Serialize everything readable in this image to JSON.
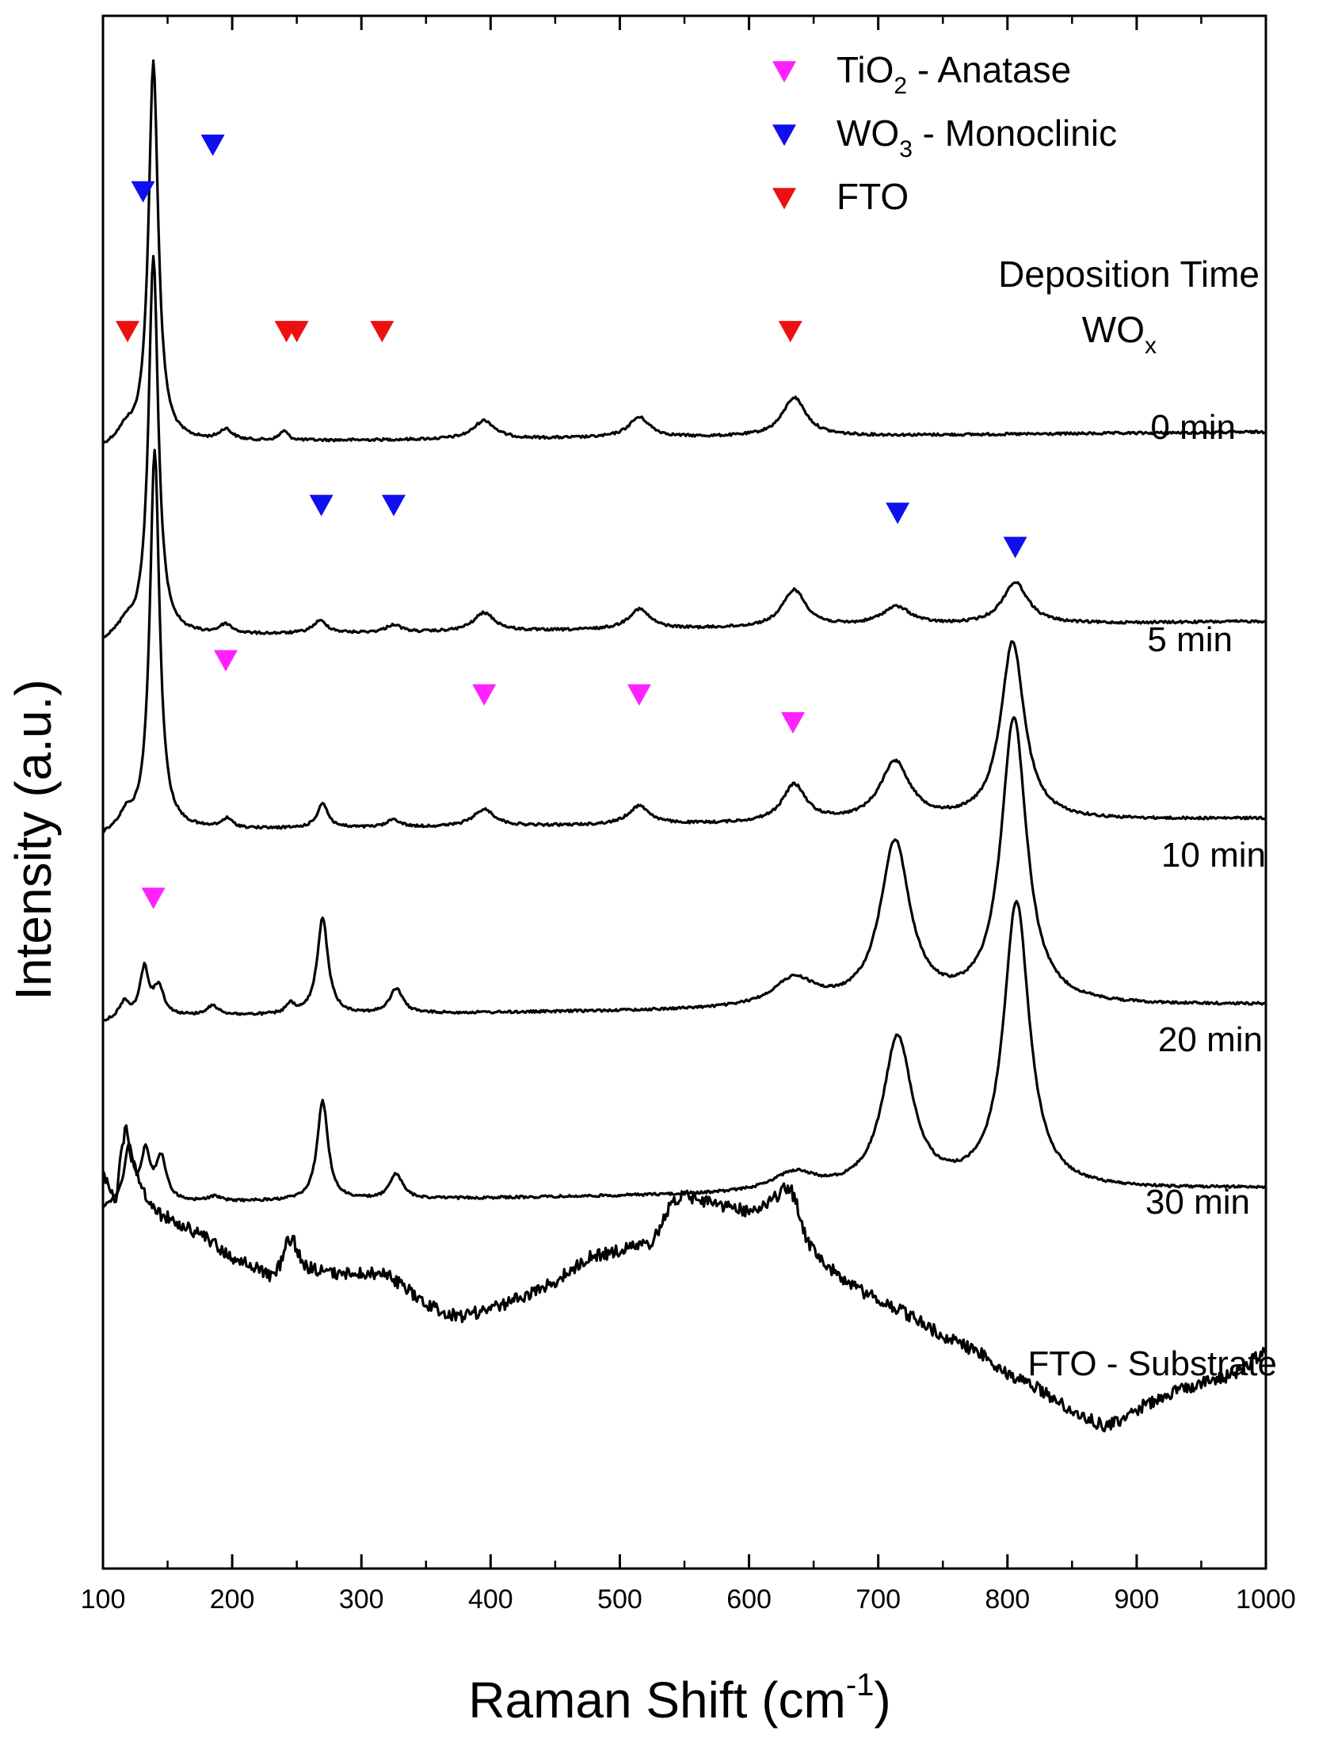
{
  "chart_data": {
    "type": "line",
    "title": "",
    "xlabel_main": "Raman Shift (cm",
    "xlabel_sup": "-1",
    "xlabel_close": ")",
    "ylabel": "Intensity (a.u.)",
    "xlim": [
      100,
      1000
    ],
    "xticks": [
      100,
      200,
      300,
      400,
      500,
      600,
      700,
      800,
      900,
      1000
    ],
    "grid": false,
    "legend_position": "top-right",
    "legend": [
      {
        "main": "TiO",
        "sub": "2",
        "rest": " - Anatase",
        "color": "#ff22ff"
      },
      {
        "main": "WO",
        "sub": "3",
        "rest": " - Monoclinic",
        "color": "#1010ee"
      },
      {
        "main": "FTO",
        "sub": "",
        "rest": "",
        "color": "#ee1010"
      }
    ],
    "group_title": {
      "line1": "Deposition Time",
      "line2_main": "WO",
      "line2_sub": "x"
    },
    "series": [
      {
        "name": "0 min",
        "baseline": 0.275,
        "tail": 0.268,
        "peaks": [
          [
            118,
            5,
            0.006
          ],
          [
            139,
            4.5,
            0.245
          ],
          [
            195,
            6,
            0.007
          ],
          [
            240,
            4,
            0.006
          ],
          [
            395,
            10,
            0.012
          ],
          [
            515,
            10,
            0.013
          ],
          [
            635,
            11,
            0.025
          ]
        ],
        "markers": [
          {
            "x": 139,
            "y": 0.568,
            "phase": "TiO2"
          },
          {
            "x": 195,
            "y": 0.415,
            "phase": "TiO2"
          },
          {
            "x": 395,
            "y": 0.437,
            "phase": "TiO2"
          },
          {
            "x": 515,
            "y": 0.437,
            "phase": "TiO2"
          },
          {
            "x": 634,
            "y": 0.455,
            "phase": "TiO2"
          }
        ]
      },
      {
        "name": "5 min",
        "baseline": 0.4,
        "tail": 0.39,
        "peaks": [
          [
            118,
            5,
            0.006
          ],
          [
            139,
            4.5,
            0.245
          ],
          [
            195,
            6,
            0.006
          ],
          [
            268,
            7,
            0.008
          ],
          [
            325,
            7,
            0.005
          ],
          [
            395,
            10,
            0.012
          ],
          [
            515,
            10,
            0.013
          ],
          [
            635,
            11,
            0.024
          ],
          [
            714,
            14,
            0.012
          ],
          [
            806,
            12,
            0.027
          ]
        ],
        "markers": [
          {
            "x": 269,
            "y": 0.315,
            "phase": "WO3"
          },
          {
            "x": 325,
            "y": 0.315,
            "phase": "WO3"
          },
          {
            "x": 715,
            "y": 0.32,
            "phase": "WO3"
          },
          {
            "x": 806,
            "y": 0.342,
            "phase": "WO3"
          }
        ]
      },
      {
        "name": "10 min",
        "baseline": 0.525,
        "tail": 0.517,
        "peaks": [
          [
            118,
            5,
            0.008
          ],
          [
            140,
            4.5,
            0.245
          ],
          [
            196,
            5,
            0.006
          ],
          [
            270,
            5,
            0.016
          ],
          [
            325,
            6,
            0.005
          ],
          [
            395,
            10,
            0.011
          ],
          [
            515,
            10,
            0.012
          ],
          [
            635,
            11,
            0.024
          ],
          [
            713,
            14,
            0.038
          ],
          [
            804,
            11,
            0.115
          ]
        ],
        "markers": [
          {
            "x": 119,
            "y": 0.203,
            "phase": "FTO"
          },
          {
            "x": 242,
            "y": 0.203,
            "phase": "FTO"
          },
          {
            "x": 250,
            "y": 0.203,
            "phase": "FTO"
          },
          {
            "x": 316,
            "y": 0.203,
            "phase": "FTO"
          },
          {
            "x": 632,
            "y": 0.203,
            "phase": "FTO"
          }
        ]
      },
      {
        "name": "20 min",
        "baseline": 0.645,
        "tail": 0.637,
        "peaks": [
          [
            117,
            4,
            0.009
          ],
          [
            132,
            4,
            0.03
          ],
          [
            143,
            5,
            0.018
          ],
          [
            185,
            6,
            0.006
          ],
          [
            245,
            4,
            0.006
          ],
          [
            270,
            5,
            0.062
          ],
          [
            327,
            6,
            0.016
          ],
          [
            635,
            20,
            0.018
          ],
          [
            713,
            14,
            0.105
          ],
          [
            805,
            12,
            0.185
          ]
        ],
        "markers": [
          {
            "x": 131,
            "y": 0.113,
            "phase": "WO3"
          },
          {
            "x": 185,
            "y": 0.083,
            "phase": "WO3"
          }
        ]
      },
      {
        "name": "30 min",
        "baseline": 0.765,
        "tail": 0.755,
        "peaks": [
          [
            120,
            4,
            0.035
          ],
          [
            133,
            4,
            0.03
          ],
          [
            145,
            5,
            0.028
          ],
          [
            186,
            6,
            0.003
          ],
          [
            270,
            5,
            0.064
          ],
          [
            327,
            6,
            0.016
          ],
          [
            635,
            20,
            0.012
          ],
          [
            715,
            14,
            0.098
          ],
          [
            807,
            12,
            0.185
          ]
        ],
        "markers": []
      },
      {
        "name": "FTO - Substrate",
        "baseline": 0.0,
        "tail": 0.0,
        "peaks": [],
        "markers": []
      }
    ],
    "substrate_points": [
      [
        100,
        0.745
      ],
      [
        110,
        0.762
      ],
      [
        114,
        0.735
      ],
      [
        118,
        0.715
      ],
      [
        121,
        0.732
      ],
      [
        125,
        0.742
      ],
      [
        132,
        0.758
      ],
      [
        140,
        0.77
      ],
      [
        160,
        0.778
      ],
      [
        180,
        0.787
      ],
      [
        200,
        0.8
      ],
      [
        215,
        0.805
      ],
      [
        230,
        0.812
      ],
      [
        237,
        0.805
      ],
      [
        242,
        0.788
      ],
      [
        248,
        0.79
      ],
      [
        255,
        0.805
      ],
      [
        275,
        0.81
      ],
      [
        300,
        0.81
      ],
      [
        320,
        0.81
      ],
      [
        350,
        0.83
      ],
      [
        375,
        0.838
      ],
      [
        400,
        0.833
      ],
      [
        425,
        0.825
      ],
      [
        450,
        0.815
      ],
      [
        475,
        0.8
      ],
      [
        500,
        0.795
      ],
      [
        525,
        0.79
      ],
      [
        540,
        0.765
      ],
      [
        550,
        0.76
      ],
      [
        560,
        0.762
      ],
      [
        575,
        0.765
      ],
      [
        600,
        0.77
      ],
      [
        615,
        0.765
      ],
      [
        628,
        0.755
      ],
      [
        632,
        0.755
      ],
      [
        638,
        0.768
      ],
      [
        645,
        0.79
      ],
      [
        660,
        0.805
      ],
      [
        680,
        0.818
      ],
      [
        700,
        0.827
      ],
      [
        720,
        0.835
      ],
      [
        750,
        0.85
      ],
      [
        780,
        0.862
      ],
      [
        800,
        0.875
      ],
      [
        820,
        0.882
      ],
      [
        840,
        0.893
      ],
      [
        860,
        0.903
      ],
      [
        875,
        0.908
      ],
      [
        890,
        0.905
      ],
      [
        905,
        0.895
      ],
      [
        925,
        0.888
      ],
      [
        950,
        0.88
      ],
      [
        975,
        0.875
      ],
      [
        1000,
        0.86
      ]
    ]
  }
}
